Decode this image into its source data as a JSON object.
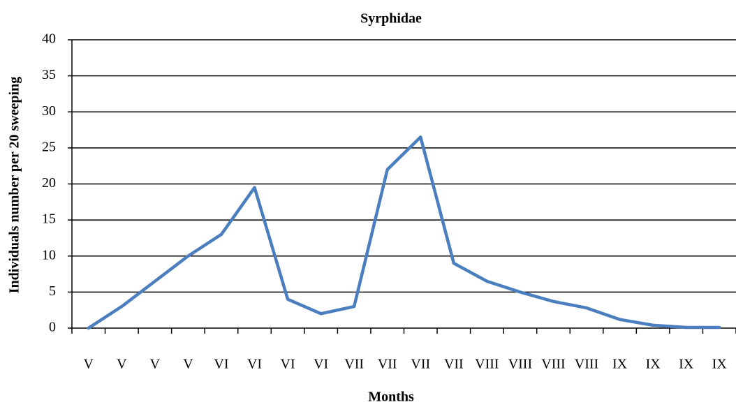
{
  "chart_data": {
    "type": "line",
    "title": "Syrphidae",
    "x_label": "Months",
    "y_label": "Individuals number per 20 sweeping",
    "categories": [
      "V",
      "V",
      "V",
      "V",
      "VI",
      "VI",
      "VI",
      "VI",
      "VII",
      "VII",
      "VII",
      "VII",
      "VIII",
      "VIII",
      "VIII",
      "VIII",
      "IX",
      "IX",
      "IX",
      "IX"
    ],
    "series": [
      {
        "name": "Syrphidae",
        "color": "#4a7ebf",
        "values": [
          0,
          3,
          6.5,
          10,
          13,
          19.5,
          4,
          2,
          3,
          22,
          26.5,
          9,
          6.5,
          5,
          3.7,
          2.8,
          1.2,
          0.4,
          0.1,
          0.1
        ]
      }
    ],
    "ylim": [
      0,
      40
    ],
    "yticks": [
      0,
      5,
      10,
      15,
      20,
      25,
      30,
      35,
      40
    ],
    "grid": true
  }
}
